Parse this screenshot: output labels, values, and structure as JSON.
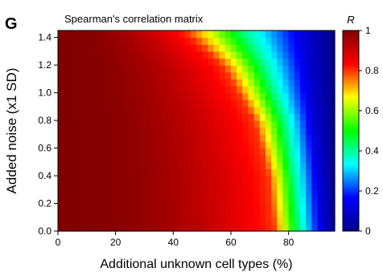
{
  "panel_label": "G",
  "chart_data": {
    "type": "heatmap",
    "title": "Spearman's correlation matrix",
    "xlabel": "Additional unknown cell types (%)",
    "ylabel": "Added noise (x1 SD)",
    "xlim": [
      0,
      96
    ],
    "ylim": [
      0,
      1.45
    ],
    "x_ticks": [
      0,
      20,
      40,
      60,
      80
    ],
    "x_tick_labels": [
      "0",
      "20",
      "40",
      "60",
      "80"
    ],
    "y_ticks": [
      0.0,
      0.2,
      0.4,
      0.6,
      0.8,
      1.0,
      1.2,
      1.4
    ],
    "y_tick_labels": [
      "0.0",
      "0.2",
      "0.4",
      "0.6",
      "0.8",
      "1.0",
      "1.2",
      "1.4"
    ],
    "grid_x_step_percent": 2,
    "grid_y_step_sd": 0.05,
    "value_model": "R is near 1 in the low-noise, low-unknown corner and falls toward 0 as added noise and unknown cell types increase; iso-correlation contours curve inward with noise",
    "contours": [
      {
        "R": 0.8,
        "points": [
          [
            75,
            0.0
          ],
          [
            73,
            0.4
          ],
          [
            68,
            0.8
          ],
          [
            57,
            1.2
          ],
          [
            44,
            1.45
          ]
        ]
      },
      {
        "R": 0.4,
        "points": [
          [
            84,
            0.0
          ],
          [
            82,
            0.4
          ],
          [
            79,
            0.8
          ],
          [
            72,
            1.2
          ],
          [
            65,
            1.45
          ]
        ]
      },
      {
        "R": 0.1,
        "points": [
          [
            92,
            0.0
          ],
          [
            91,
            0.4
          ],
          [
            89,
            0.8
          ],
          [
            87,
            1.2
          ],
          [
            86,
            1.45
          ]
        ]
      }
    ],
    "colorbar": {
      "label": "R",
      "range": [
        0,
        1
      ],
      "ticks": [
        0,
        0.2,
        0.4,
        0.6,
        0.8,
        1
      ],
      "tick_labels": [
        "0",
        "0.2",
        "0.4",
        "0.6",
        "0.8",
        "1"
      ],
      "colormap": "jet",
      "colors": [
        "#00008b",
        "#0000ff",
        "#00ffff",
        "#00ff00",
        "#ffff00",
        "#ff0000",
        "#800000"
      ]
    }
  }
}
